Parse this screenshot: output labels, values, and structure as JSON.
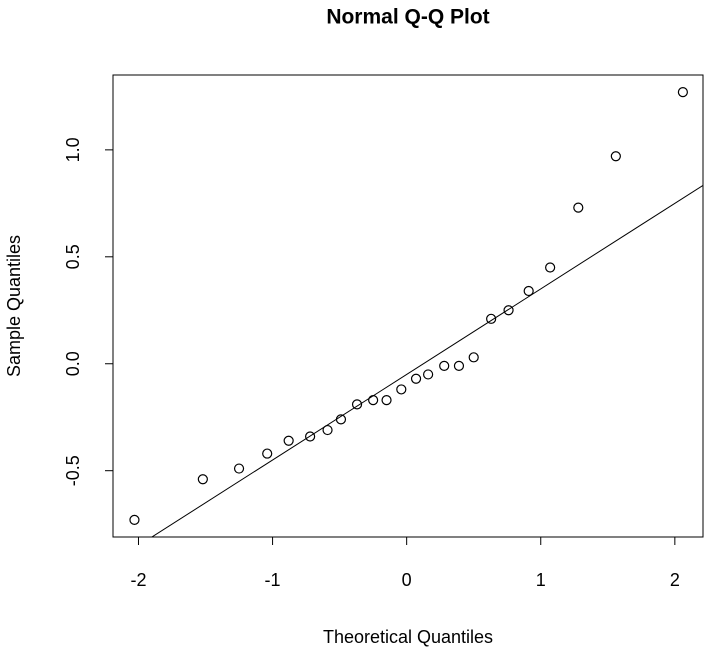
{
  "chart_data": {
    "type": "scatter",
    "title": "Normal Q-Q Plot",
    "x_label": "Theoretical Quantiles",
    "y_label": "Sample Quantiles",
    "x": [
      -2.03,
      -1.52,
      -1.25,
      -1.04,
      -0.88,
      -0.72,
      -0.59,
      -0.49,
      -0.37,
      -0.25,
      -0.15,
      -0.04,
      0.07,
      0.16,
      0.28,
      0.39,
      0.5,
      0.63,
      0.76,
      0.91,
      1.07,
      1.28,
      1.56,
      2.06
    ],
    "values": [
      -0.73,
      -0.54,
      -0.49,
      -0.42,
      -0.36,
      -0.34,
      -0.31,
      -0.26,
      -0.19,
      -0.17,
      -0.17,
      -0.12,
      -0.07,
      -0.05,
      -0.01,
      -0.01,
      0.03,
      0.21,
      0.25,
      0.34,
      0.45,
      0.73,
      0.97,
      1.27
    ],
    "color": "#000000",
    "ref_line": {
      "intercept": -0.05,
      "slope": 0.4
    },
    "xlim": [
      -2.19,
      2.21
    ],
    "ylim": [
      -0.81,
      1.35
    ],
    "xticks": [
      -2,
      -1,
      0,
      1,
      2
    ],
    "yticks": [
      -0.5,
      {
        "value": 0,
        "label": "0.0"
      },
      0.5,
      {
        "value": 1,
        "label": "1.0"
      }
    ]
  }
}
